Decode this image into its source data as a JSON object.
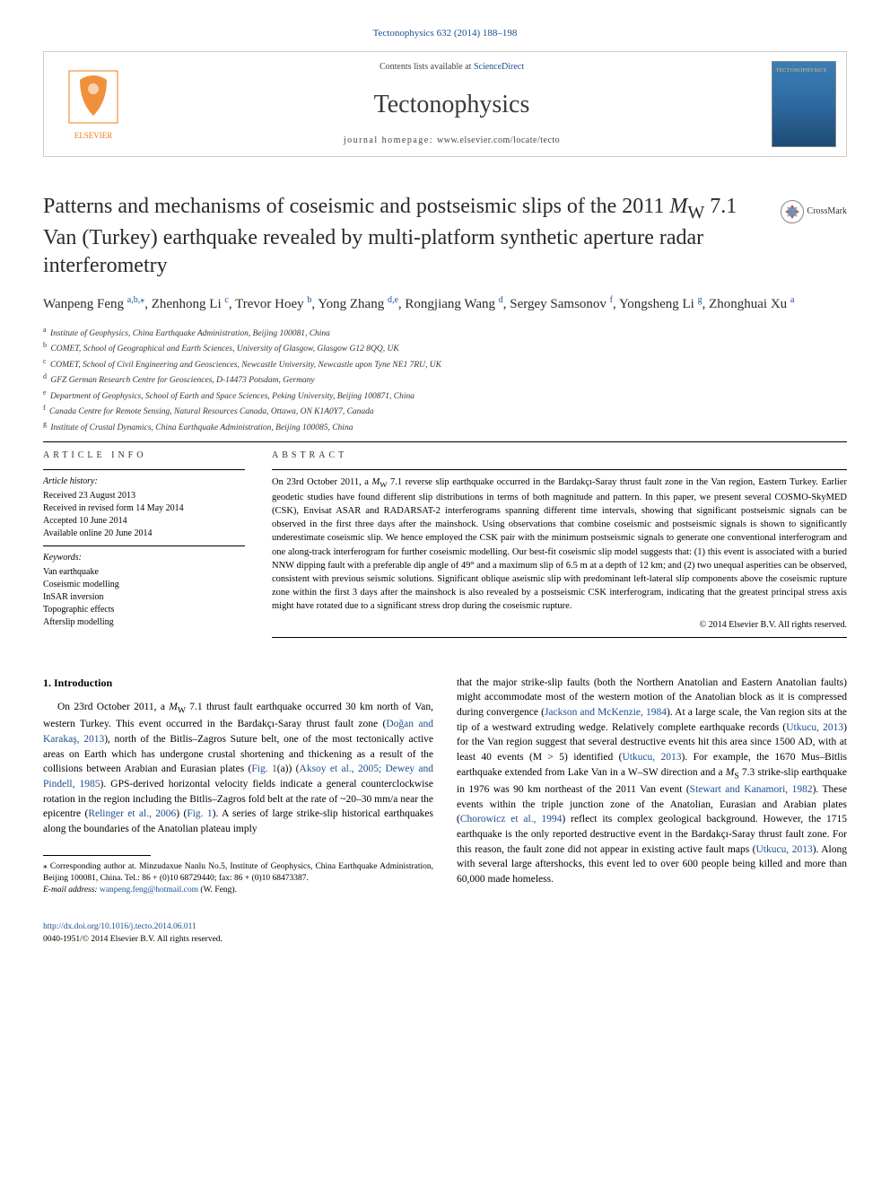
{
  "header": {
    "citation": "Tectonophysics 632 (2014) 188–198",
    "contents_prefix": "Contents lists available at ",
    "contents_link": "ScienceDirect",
    "journal_title": "Tectonophysics",
    "homepage_prefix": "journal homepage: ",
    "homepage_link": "www.elsevier.com/locate/tecto",
    "cover_label": "TECTONOPHYSICS"
  },
  "crossmark_label": "CrossMark",
  "title_line1": "Patterns and mechanisms of coseismic and postseismic slips of the 2011 ",
  "title_mw": "M",
  "title_sub": "W",
  "title_line2": " 7.1 Van (Turkey) earthquake revealed by multi-platform synthetic aperture radar interferometry",
  "authors": [
    {
      "name": "Wanpeng Feng ",
      "sup": "a,b,",
      "star": true
    },
    {
      "name": ", Zhenhong Li ",
      "sup": "c"
    },
    {
      "name": ", Trevor Hoey ",
      "sup": "b"
    },
    {
      "name": ", Yong Zhang ",
      "sup": "d,e"
    },
    {
      "name": ", Rongjiang Wang ",
      "sup": "d"
    },
    {
      "name": ", Sergey Samsonov ",
      "sup": "f"
    },
    {
      "name": ", Yongsheng Li ",
      "sup": "g"
    },
    {
      "name": ", Zhonghuai Xu ",
      "sup": "a"
    }
  ],
  "affiliations": [
    {
      "sup": "a",
      "text": "Institute of Geophysics, China Earthquake Administration, Beijing 100081, China"
    },
    {
      "sup": "b",
      "text": "COMET, School of Geographical and Earth Sciences, University of Glasgow, Glasgow G12 8QQ, UK"
    },
    {
      "sup": "c",
      "text": "COMET, School of Civil Engineering and Geosciences, Newcastle University, Newcastle upon Tyne NE1 7RU, UK"
    },
    {
      "sup": "d",
      "text": "GFZ German Research Centre for Geosciences, D-14473 Potsdam, Germany"
    },
    {
      "sup": "e",
      "text": "Department of Geophysics, School of Earth and Space Sciences, Peking University, Beijing 100871, China"
    },
    {
      "sup": "f",
      "text": "Canada Centre for Remote Sensing, Natural Resources Canada, Ottawa, ON K1A0Y7, Canada"
    },
    {
      "sup": "g",
      "text": "Institute of Crustal Dynamics, China Earthquake Administration, Beijing 100085, China"
    }
  ],
  "article_info": {
    "heading": "article info",
    "history_heading": "Article history:",
    "history_lines": [
      "Received 23 August 2013",
      "Received in revised form 14 May 2014",
      "Accepted 10 June 2014",
      "Available online 20 June 2014"
    ],
    "keywords_heading": "Keywords:",
    "keywords": [
      "Van earthquake",
      "Coseismic modelling",
      "InSAR inversion",
      "Topographic effects",
      "Afterslip modelling"
    ]
  },
  "abstract": {
    "heading": "abstract",
    "text": "On 23rd October 2011, a MW 7.1 reverse slip earthquake occurred in the Bardakçı-Saray thrust fault zone in the Van region, Eastern Turkey. Earlier geodetic studies have found different slip distributions in terms of both magnitude and pattern. In this paper, we present several COSMO-SkyMED (CSK), Envisat ASAR and RADARSAT-2 interferograms spanning different time intervals, showing that significant postseismic signals can be observed in the first three days after the mainshock. Using observations that combine coseismic and postseismic signals is shown to significantly underestimate coseismic slip. We hence employed the CSK pair with the minimum postseismic signals to generate one conventional interferogram and one along-track interferogram for further coseismic modelling. Our best-fit coseismic slip model suggests that: (1) this event is associated with a buried NNW dipping fault with a preferable dip angle of 49° and a maximum slip of 6.5 m at a depth of 12 km; and (2) two unequal asperities can be observed, consistent with previous seismic solutions. Significant oblique aseismic slip with predominant left-lateral slip components above the coseismic rupture zone within the first 3 days after the mainshock is also revealed by a postseismic CSK interferogram, indicating that the greatest principal stress axis might have rotated due to a significant stress drop during the coseismic rupture.",
    "copyright": "© 2014 Elsevier B.V. All rights reserved."
  },
  "body": {
    "section_heading": "1. Introduction",
    "left_paragraph": "On 23rd October 2011, a MW 7.1 thrust fault earthquake occurred 30 km north of Van, western Turkey. This event occurred in the Bardakçı-Saray thrust fault zone (Doğan and Karakaş, 2013), north of the Bitlis–Zagros Suture belt, one of the most tectonically active areas on Earth which has undergone crustal shortening and thickening as a result of the collisions between Arabian and Eurasian plates (Fig. 1(a)) (Aksoy et al., 2005; Dewey and Pindell, 1985). GPS-derived horizontal velocity fields indicate a general counterclockwise rotation in the region including the Bitlis–Zagros fold belt at the rate of ~20–30 mm/a near the epicentre (Relinger et al., 2006) (Fig. 1). A series of large strike-slip historical earthquakes along the boundaries of the Anatolian plateau imply",
    "left_refs": {
      "dogan": "Doğan and Karakaş, 2013",
      "fig1a": "Fig. 1",
      "aksoy": "Aksoy et al., 2005; Dewey and Pindell, 1985",
      "relinger": "Relinger et al., 2006",
      "fig1": "Fig. 1"
    },
    "right_paragraph_1": "that the major strike-slip faults (both the Northern Anatolian and Eastern Anatolian faults) might accommodate most of the western motion of the Anatolian block as it is compressed during convergence (Jackson and McKenzie, 1984). At a large scale, the Van region sits at the tip of a westward extruding wedge. Relatively complete earthquake records (Utkucu, 2013) for the Van region suggest that several destructive events hit this area since 1500 AD, with at least 40 events (M > 5) identified (Utkucu, 2013). For example, the 1670 Mus–Bitlis earthquake extended from Lake Van in a W–SW direction and a MS 7.3 strike-slip earthquake in 1976 was 90 km northeast of the 2011 Van event (Stewart and Kanamori, 1982). These events within the triple junction zone of the Anatolian, Eurasian and Arabian plates (Chorowicz et al., 1994) reflect its complex geological background. However, the 1715 earthquake is the only reported destructive event in the Bardakçı-Saray thrust fault zone. For this reason, the fault zone did not appear in existing active fault maps (Utkucu, 2013). Along with several large aftershocks, this event led to over 600 people being killed and more than 60,000 made homeless.",
    "right_refs": {
      "jackson": "Jackson and McKenzie, 1984",
      "utkucu1": "Utkucu, 2013",
      "utkucu2": "Utkucu, 2013",
      "stewart": "Stewart and Kanamori, 1982",
      "chorowicz": "Chorowicz et al., 1994",
      "utkucu3": "Utkucu, 2013"
    }
  },
  "footnote": {
    "corr_label": "⁎ Corresponding author at. Minzudaxue Nanlu No.5, Institute of Geophysics, China Earthquake Administration, Beijing 100081, China. Tel.: 86 + (0)10 68729440; fax: 86 + (0)10 68473387.",
    "email_prefix": "E-mail address: ",
    "email": "wanpeng.feng@hotmail.com",
    "email_suffix": " (W. Feng)."
  },
  "doi": {
    "link": "http://dx.doi.org/10.1016/j.tecto.2014.06.011",
    "line": "0040-1951/© 2014 Elsevier B.V. All rights reserved."
  },
  "colors": {
    "link": "#1a4f8f",
    "text": "#000000",
    "header_border": "#cccccc",
    "cover_top": "#3b7db8",
    "cover_bottom": "#1f4a75",
    "cover_text": "#e8c45a",
    "elsevier_orange": "#ef7c1a"
  }
}
